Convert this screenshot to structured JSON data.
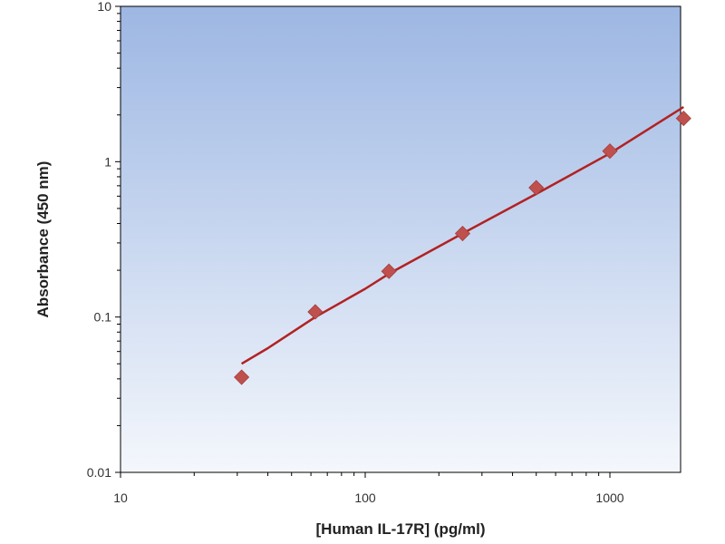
{
  "chart_data": {
    "type": "scatter",
    "title": "",
    "xlabel": "[Human IL-17R] (pg/ml)",
    "ylabel": "Absorbance (450 nm)",
    "x_scale": "log",
    "y_scale": "log",
    "xlim": [
      10,
      2000
    ],
    "ylim": [
      0.01,
      10
    ],
    "x_ticks": [
      10,
      100,
      1000
    ],
    "x_tick_labels": [
      "10",
      "100",
      "1000"
    ],
    "y_ticks": [
      0.01,
      0.1,
      1,
      10
    ],
    "y_tick_labels": [
      "0.01",
      "0.1",
      "1",
      "10"
    ],
    "grid": false,
    "legend": "none",
    "series": [
      {
        "kind": "points",
        "marker": "diamond",
        "color": "#C0504D",
        "x": [
          31.25,
          62.5,
          125,
          250,
          500,
          1000,
          2000
        ],
        "y": [
          0.041,
          0.108,
          0.197,
          0.345,
          0.68,
          1.17,
          1.9
        ]
      },
      {
        "kind": "fit-line",
        "color": "#B22222",
        "x": [
          31.25,
          40,
          62.5,
          100,
          125,
          250,
          500,
          1000,
          2000
        ],
        "y": [
          0.05,
          0.063,
          0.1,
          0.152,
          0.19,
          0.345,
          0.62,
          1.13,
          2.25
        ]
      }
    ]
  },
  "colors": {
    "plot_bg_top": "#9DB7E3",
    "plot_bg_bottom": "#F4F7FC",
    "marker": "#C0504D",
    "line": "#B22222",
    "axis": "#000000"
  }
}
